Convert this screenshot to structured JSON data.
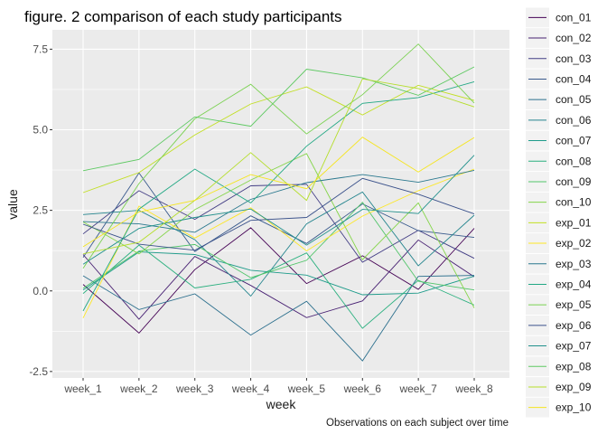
{
  "chart_data": {
    "type": "line",
    "title": "figure. 2 comparison of each study participants",
    "xlabel": "week",
    "ylabel": "value",
    "caption": "Observations on each subject over time",
    "categories": [
      "week_1",
      "week_2",
      "week_3",
      "week_4",
      "week_5",
      "week_6",
      "week_7",
      "week_8"
    ],
    "yticks": [
      -2.5,
      0.0,
      2.5,
      5.0,
      7.5
    ],
    "ytick_labels": [
      "-2.5",
      "0.0",
      "2.5",
      "5.0",
      "7.5"
    ],
    "ylim": [
      -2.7,
      8.1
    ],
    "grid": true,
    "legend_position": "right",
    "series": [
      {
        "name": "con_01",
        "color": "#440154",
        "values": [
          0.2,
          -1.31,
          0.66,
          1.96,
          0.23,
          1.09,
          0.05,
          1.94
        ]
      },
      {
        "name": "con_02",
        "color": "#482173",
        "values": [
          1.13,
          -0.88,
          1.07,
          0.17,
          -0.83,
          -0.31,
          1.58,
          0.44
        ]
      },
      {
        "name": "con_03",
        "color": "#433E85",
        "values": [
          1.77,
          3.11,
          2.22,
          3.26,
          3.31,
          0.89,
          1.88,
          1.01
        ]
      },
      {
        "name": "con_04",
        "color": "#38598C",
        "values": [
          1.04,
          3.66,
          1.22,
          2.33,
          1.47,
          2.7,
          1.87,
          1.66
        ]
      },
      {
        "name": "con_05",
        "color": "#2D708E",
        "values": [
          0.47,
          -0.58,
          -0.09,
          -1.37,
          -0.32,
          -2.17,
          0.45,
          0.48
        ]
      },
      {
        "name": "con_06",
        "color": "#25858E",
        "values": [
          2.37,
          2.5,
          1.59,
          -0.16,
          2.08,
          3.07,
          0.78,
          2.35
        ]
      },
      {
        "name": "con_07",
        "color": "#1E9B8A",
        "values": [
          0.03,
          1.21,
          1.13,
          0.64,
          0.49,
          -0.12,
          -0.07,
          0.46
        ]
      },
      {
        "name": "con_08",
        "color": "#2BB07F",
        "values": [
          -0.08,
          1.42,
          0.09,
          0.36,
          1.18,
          -1.16,
          0.33,
          -0.44
        ]
      },
      {
        "name": "con_09",
        "color": "#51C56A",
        "values": [
          0.08,
          1.24,
          1.44,
          0.41,
          0.95,
          2.75,
          0.3,
          0.03
        ]
      },
      {
        "name": "con_10",
        "color": "#85D54A",
        "values": [
          2.14,
          1.15,
          2.52,
          3.44,
          4.26,
          0.97,
          2.73,
          -0.53
        ]
      },
      {
        "name": "exp_01",
        "color": "#C2DF23",
        "values": [
          3.05,
          3.67,
          4.84,
          5.8,
          6.33,
          5.46,
          6.38,
          5.91
        ]
      },
      {
        "name": "exp_02",
        "color": "#FDE725",
        "values": [
          -0.84,
          2.63,
          1.64,
          2.58,
          1.24,
          2.32,
          3.11,
          3.78
        ]
      },
      {
        "name": "exp_03",
        "color": "#2A788E",
        "values": [
          2.15,
          2.08,
          1.82,
          2.84,
          3.36,
          3.61,
          3.37,
          3.74
        ]
      },
      {
        "name": "exp_04",
        "color": "#22A884",
        "values": [
          -0.62,
          2.54,
          3.78,
          2.73,
          4.49,
          5.82,
          6.0,
          6.49
        ]
      },
      {
        "name": "exp_05",
        "color": "#7AD151",
        "values": [
          0.7,
          3.33,
          5.34,
          6.41,
          4.87,
          6.09,
          7.66,
          5.83
        ]
      },
      {
        "name": "exp_06",
        "color": "#3B528B",
        "values": [
          2.07,
          1.45,
          1.26,
          2.19,
          2.28,
          3.49,
          3.0,
          2.39
        ]
      },
      {
        "name": "exp_07",
        "color": "#21918C",
        "values": [
          0.83,
          1.94,
          2.28,
          2.54,
          1.42,
          2.53,
          2.4,
          4.21
        ]
      },
      {
        "name": "exp_08",
        "color": "#5EC962",
        "values": [
          3.73,
          4.08,
          5.4,
          5.11,
          6.88,
          6.61,
          6.07,
          6.95
        ]
      },
      {
        "name": "exp_09",
        "color": "#B5DE2B",
        "values": [
          1.15,
          1.51,
          2.81,
          4.29,
          2.81,
          6.58,
          6.28,
          5.71
        ]
      },
      {
        "name": "exp_10",
        "color": "#F5E51F",
        "values": [
          1.37,
          2.45,
          2.81,
          3.61,
          3.17,
          4.77,
          3.69,
          4.76
        ]
      }
    ]
  }
}
